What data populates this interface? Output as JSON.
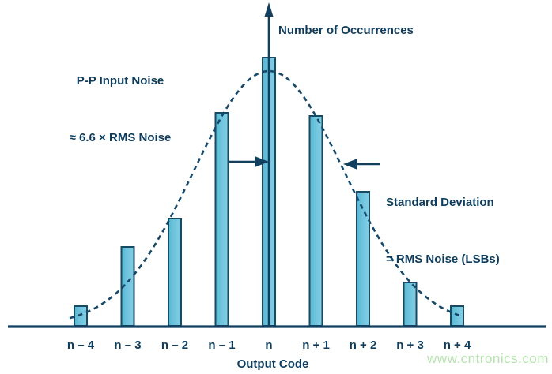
{
  "annotations": {
    "pp_noise_line1": "P-P Input Noise",
    "pp_noise_line2": "≈ 6.6 × RMS Noise",
    "y_axis_label": "Number of Occurrences",
    "stddev_line1": "Standard Deviation",
    "stddev_line2": "= RMS Noise (LSBs)",
    "x_axis_label": "Output Code",
    "watermark": "www.cntronics.com"
  },
  "colors": {
    "navy_text": "#0e3c5c",
    "axis_stroke": "#123f5d",
    "curve_stroke": "#16486a",
    "bar_border": "#174a63",
    "bar_fill_dark": "#58b7d2",
    "bar_fill_light": "#84cfe4",
    "watermark_green": "#b6e3af",
    "background": "#ffffff"
  },
  "chart_data": {
    "type": "bar",
    "title": "",
    "categories": [
      "n – 4",
      "n – 3",
      "n – 2",
      "n – 1",
      "n",
      "n + 1",
      "n + 2",
      "n + 3",
      "n + 4"
    ],
    "values": [
      25,
      100,
      136,
      270,
      340,
      266,
      170,
      55,
      25
    ],
    "values_note": "relative number of occurrences per output code (no numeric scale shown)",
    "xlabel": "Output Code",
    "ylabel": "Number of Occurrences",
    "ylim": [
      0,
      360
    ],
    "grid": false,
    "legend": null,
    "overlay_curve": {
      "type": "gaussian",
      "dashed": true,
      "center_category": "n",
      "sigma_in_codes": 1.6,
      "peak_relative": 323
    }
  }
}
